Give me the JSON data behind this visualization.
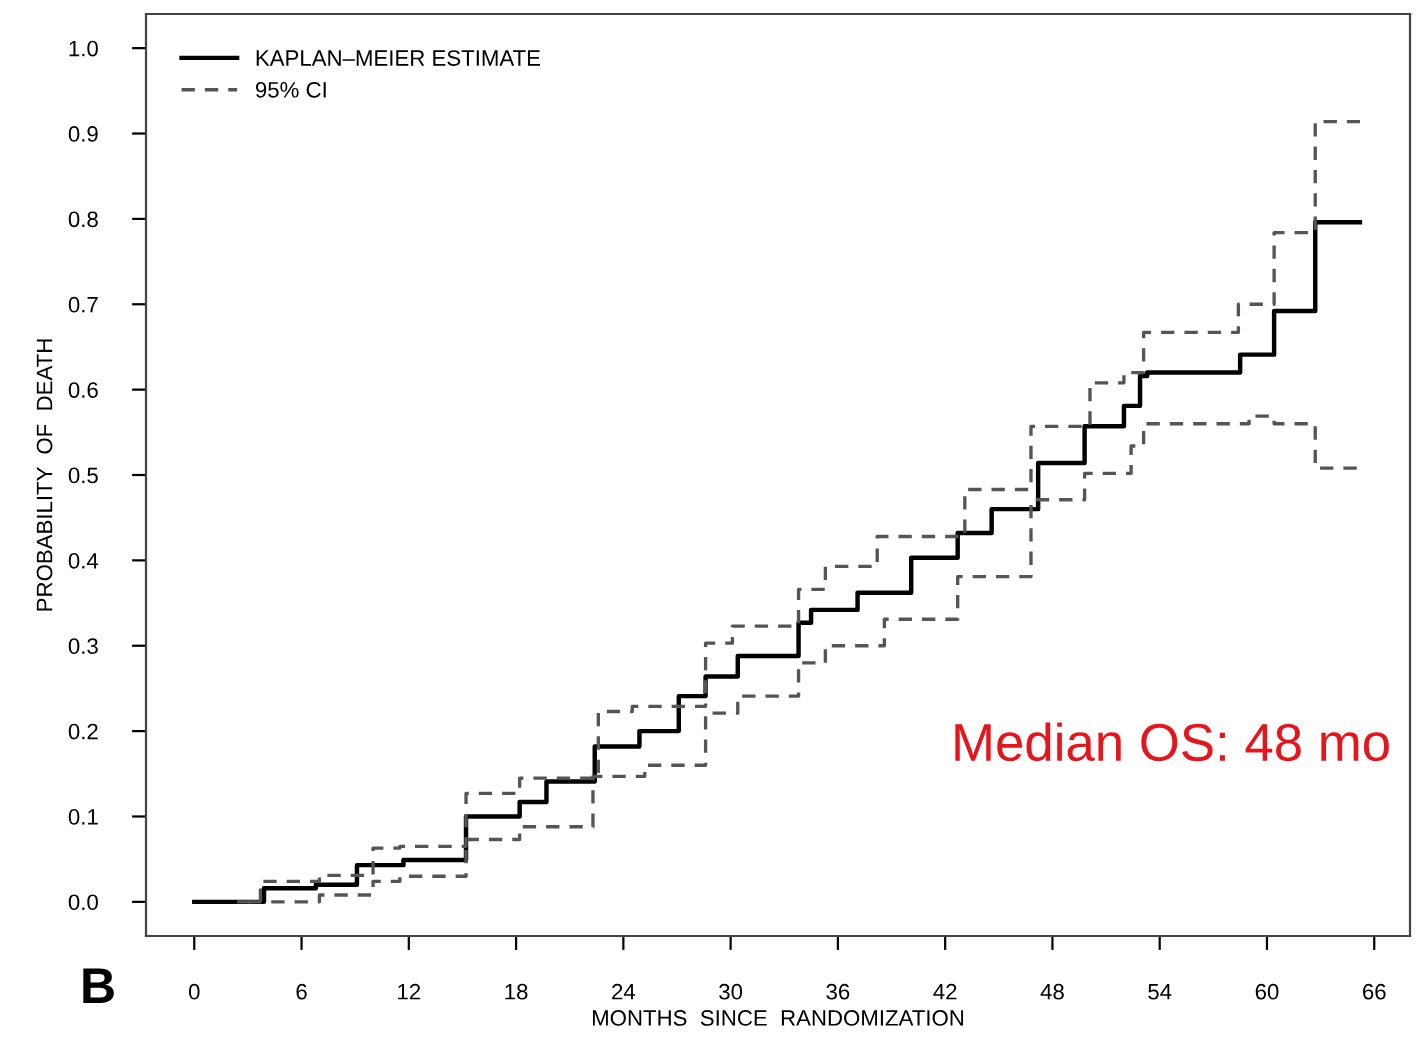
{
  "chart_data": {
    "type": "step",
    "xlabel": "MONTHS  SINCE  RANDOMIZATION",
    "ylabel": "PROBABILITY  OF  DEATH",
    "xlim": [
      -2.7,
      68
    ],
    "ylim": [
      -0.04,
      1.04
    ],
    "xticks": [
      0,
      6,
      12,
      18,
      24,
      30,
      36,
      42,
      48,
      54,
      60,
      66
    ],
    "yticks": [
      {
        "value": 0,
        "label": "0.0"
      },
      {
        "value": 0.1,
        "label": "0.1"
      },
      {
        "value": 0.2,
        "label": "0.2"
      },
      {
        "value": 0.3,
        "label": "0.3"
      },
      {
        "value": 0.4,
        "label": "0.4"
      },
      {
        "value": 0.5,
        "label": "0.5"
      },
      {
        "value": 0.6,
        "label": "0.6"
      },
      {
        "value": 0.7,
        "label": "0.7"
      },
      {
        "value": 0.8,
        "label": "0.8"
      },
      {
        "value": 0.9,
        "label": "0.9"
      },
      {
        "value": 1,
        "label": "1.0"
      }
    ],
    "grid": false,
    "legend": "top left",
    "annotations": [
      "B",
      "Median OS: 48 mo"
    ],
    "series": [
      {
        "name": "KAPLAN–MEIER ESTIMATE",
        "color": "#000000",
        "line_style": "solid",
        "x": [
          0,
          2.4,
          3.9,
          6.8,
          9.1,
          11.7,
          15.2,
          18.2,
          19.7,
          22.4,
          24.9,
          27.1,
          28.6,
          30.4,
          33.8,
          34.5,
          37.1,
          40.1,
          42.7,
          44.6,
          47.2,
          49.8,
          52.0,
          52.9,
          53.3,
          58.5,
          60.4,
          62.7,
          65.2
        ],
        "values": [
          0,
          0,
          0.016,
          0.02,
          0.043,
          0.049,
          0.1,
          0.117,
          0.141,
          0.182,
          0.2,
          0.241,
          0.264,
          0.288,
          0.327,
          0.342,
          0.362,
          0.403,
          0.432,
          0.46,
          0.514,
          0.557,
          0.581,
          0.616,
          0.62,
          0.641,
          0.692,
          0.796,
          0.796
        ]
      },
      {
        "name": "95% CI",
        "color": "#555555",
        "line_style": "dashed",
        "x": [
          2.4,
          3.7,
          7.0,
          10.0,
          11.5,
          15.2,
          18.2,
          22.6,
          24.5,
          28.6,
          30.1,
          33.8,
          35.3,
          38.2,
          43.1,
          46.8,
          50.1,
          52.0,
          53.1,
          58.4,
          60.4,
          62.7,
          65.2
        ],
        "values": [
          0,
          0.024,
          0.031,
          0.063,
          0.065,
          0.127,
          0.145,
          0.223,
          0.229,
          0.303,
          0.323,
          0.366,
          0.393,
          0.428,
          0.483,
          0.557,
          0.608,
          0.62,
          0.667,
          0.7,
          0.784,
          0.914,
          0.914
        ]
      },
      {
        "color": "#555555",
        "line_style": "dashed",
        "x": [
          3.0,
          7.0,
          10.0,
          11.5,
          15.2,
          18.2,
          22.3,
          25.2,
          28.6,
          30.4,
          33.8,
          35.3,
          38.6,
          42.7,
          46.8,
          49.8,
          52.4,
          53.1,
          59.0,
          60.4,
          62.7,
          65.2
        ],
        "values": [
          0,
          0.008,
          0.024,
          0.03,
          0.073,
          0.088,
          0.147,
          0.16,
          0.221,
          0.241,
          0.28,
          0.3,
          0.331,
          0.381,
          0.471,
          0.502,
          0.534,
          0.56,
          0.569,
          0.56,
          0.508,
          0.508
        ]
      }
    ]
  }
}
